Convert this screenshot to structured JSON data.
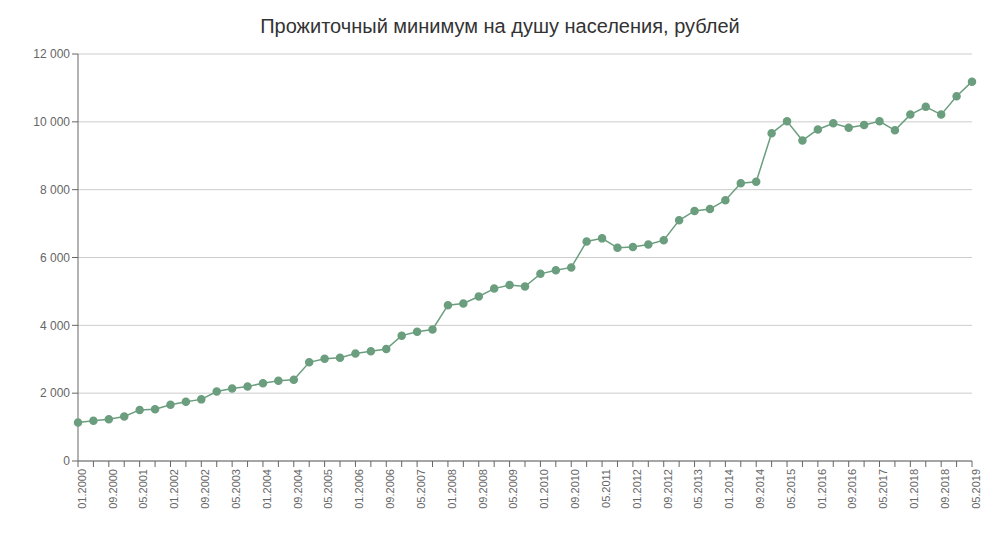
{
  "chart_data": {
    "type": "line",
    "title": "Прожиточный минимум на душу населения, рублей",
    "categories": [
      "01.2000",
      null,
      "09.2000",
      null,
      "05.2001",
      null,
      "01.2002",
      null,
      "09.2002",
      null,
      "05.2003",
      null,
      "01.2004",
      null,
      "09.2004",
      null,
      "05.2005",
      null,
      "01.2006",
      null,
      "09.2006",
      null,
      "05.2007",
      null,
      "01.2008",
      null,
      "09.2008",
      null,
      "05.2009",
      null,
      "01.2010",
      null,
      "09.2010",
      null,
      "05.2011",
      null,
      "01.2012",
      null,
      "09.2012",
      null,
      "05.2013",
      null,
      "01.2014",
      null,
      "09.2014",
      null,
      "05.2015",
      null,
      "01.2016",
      null,
      "09.2016",
      null,
      "05.2017",
      null,
      "01.2018",
      null,
      "09.2018",
      null,
      "05.2019"
    ],
    "values": [
      1138,
      1185,
      1234,
      1313,
      1507,
      1524,
      1659,
      1744,
      1817,
      2047,
      2137,
      2197,
      2293,
      2363,
      2396,
      2910,
      3017,
      3047,
      3168,
      3234,
      3302,
      3696,
      3809,
      3879,
      4593,
      4646,
      4849,
      5083,
      5187,
      5144,
      5518,
      5625,
      5707,
      6473,
      6564,
      6287,
      6307,
      6385,
      6510,
      7095,
      7372,
      7429,
      7688,
      8192,
      8234,
      9662,
      10017,
      9452,
      9776,
      9956,
      9828,
      9909,
      10017,
      9750,
      10213,
      10444,
      10213,
      10753,
      11185
    ],
    "color": "#6b9e7e",
    "marker": "circle",
    "ylim": [
      0,
      12000
    ],
    "yticks": [
      0,
      {
        "value": 2000,
        "label": "2 000"
      },
      {
        "value": 4000,
        "label": "4 000"
      },
      {
        "value": 6000,
        "label": "6 000"
      },
      {
        "value": 8000,
        "label": "8 000"
      },
      {
        "value": 10000,
        "label": "10 000"
      },
      {
        "value": 12000,
        "label": "12 000"
      }
    ],
    "grid": true
  }
}
